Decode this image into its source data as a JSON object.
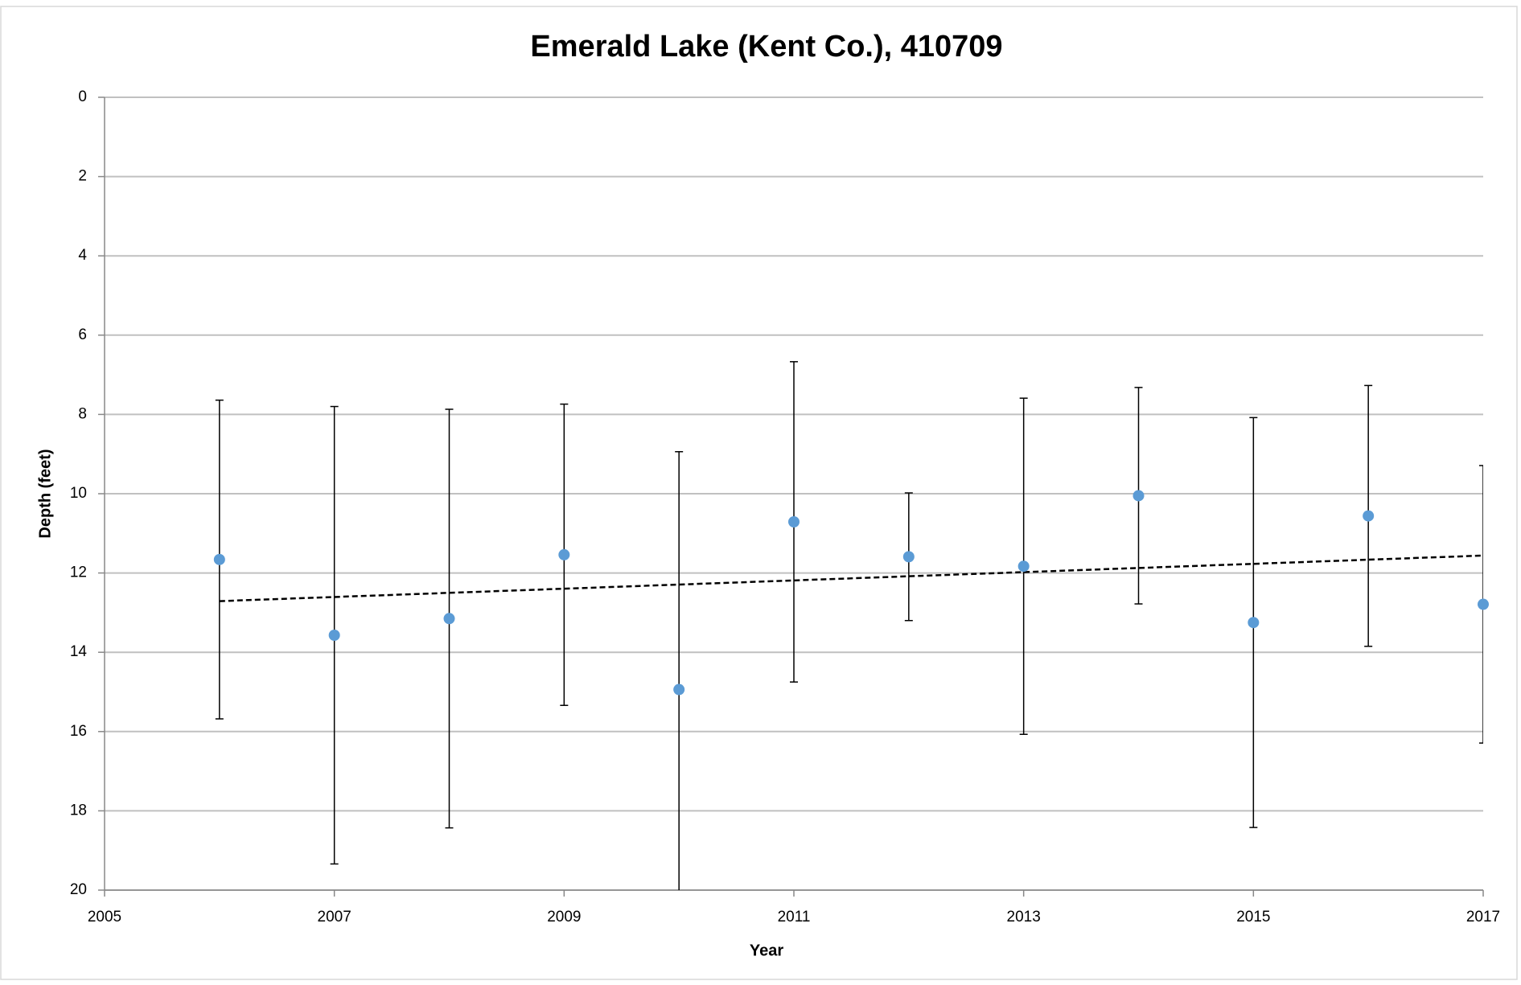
{
  "chart_data": {
    "type": "scatter",
    "title": "Emerald Lake (Kent Co.), 410709",
    "x_label": "Year",
    "y_label": "Depth (feet)",
    "x": [
      2006,
      2007,
      2008,
      2009,
      2010,
      2011,
      2012,
      2013,
      2014,
      2015,
      2016,
      2017
    ],
    "series": [
      {
        "color": "#5b9bd5",
        "values": [
          11.66,
          13.57,
          13.15,
          11.54,
          14.94,
          10.71,
          11.59,
          11.83,
          10.05,
          13.25,
          10.56,
          12.79
        ],
        "errors": [
          4.02,
          5.77,
          5.28,
          3.8,
          6.0,
          4.04,
          1.61,
          4.24,
          2.73,
          5.17,
          3.29,
          3.5
        ]
      }
    ],
    "trendline": {
      "x": [
        2006,
        2017
      ],
      "values": [
        12.71,
        11.56
      ],
      "color": "#000000"
    },
    "xlim": [
      2005,
      2017
    ],
    "xticks": [
      2005,
      2007,
      2009,
      2011,
      2013,
      2015,
      2017
    ],
    "ylim": [
      0,
      20
    ],
    "yticks": [
      0,
      2,
      4,
      6,
      8,
      10,
      12,
      14,
      16,
      18,
      20
    ],
    "y_inverted": true,
    "grid": true
  }
}
